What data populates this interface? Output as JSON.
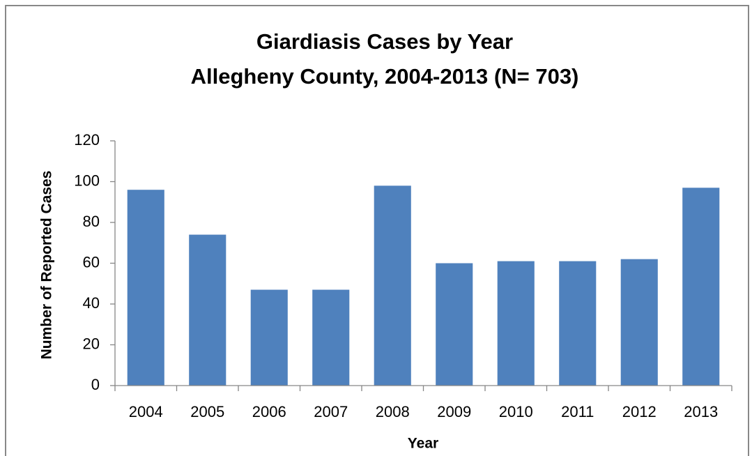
{
  "chart_data": {
    "type": "bar",
    "title": [
      "Giardiasis Cases by Year",
      "Allegheny County, 2004-2013 (N= 703)"
    ],
    "x_label": "Year",
    "y_label": "Number of Reported Cases",
    "categories": [
      "2004",
      "2005",
      "2006",
      "2007",
      "2008",
      "2009",
      "2010",
      "2011",
      "2012",
      "2013"
    ],
    "values": [
      96,
      74,
      47,
      47,
      98,
      60,
      61,
      61,
      62,
      97
    ],
    "color": "#4f81bd",
    "ylim": [
      0,
      120
    ],
    "yticks": [
      0,
      20,
      40,
      60,
      80,
      100,
      120
    ],
    "grid": false
  }
}
